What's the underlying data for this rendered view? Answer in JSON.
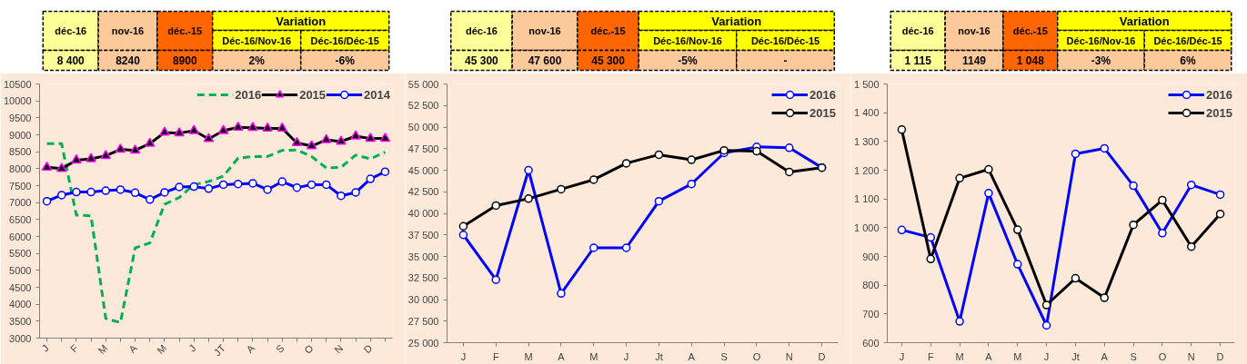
{
  "chart_data": [
    {
      "type": "other",
      "annotations": [
        "déc-16",
        "nov-16",
        "déc.-15",
        "Variation",
        "Déc-16/Nov-16",
        "Déc-16/Déc-15",
        "8 400",
        "8240",
        "8900",
        "2%",
        "-6%"
      ]
    },
    {
      "type": "line",
      "categories": [
        "J",
        null,
        "F",
        null,
        "M",
        null,
        "A",
        null,
        "M",
        null,
        "J",
        null,
        "JT",
        null,
        "A",
        null,
        "S",
        null,
        "O",
        null,
        "N",
        null,
        "D",
        null
      ],
      "ylim": [
        3000,
        10500
      ],
      "yticks": [
        3000,
        3500,
        4000,
        4500,
        5000,
        5500,
        6000,
        6500,
        7000,
        7500,
        8000,
        8500,
        9000,
        9500,
        10000,
        10500
      ],
      "grid": false,
      "legend": "top",
      "series": [
        {
          "name": "2016",
          "color": "#00b050",
          "line_style": "dashed",
          "marker": "none",
          "values": [
            8740,
            8740,
            6630,
            6610,
            3580,
            3460,
            5660,
            5810,
            6950,
            7150,
            7530,
            7620,
            7780,
            8310,
            8360,
            8360,
            8540,
            8550,
            8360,
            8020,
            8040,
            8400,
            8290,
            8490
          ]
        },
        {
          "name": "2015",
          "color": "#000000",
          "line_style": "solid",
          "marker": "triangle",
          "values": [
            8040,
            8000,
            8250,
            8290,
            8380,
            8570,
            8540,
            8740,
            9070,
            9050,
            9120,
            8880,
            9120,
            9220,
            9210,
            9190,
            9190,
            8760,
            8670,
            8850,
            8800,
            8960,
            8890,
            8890
          ]
        },
        {
          "name": "2014",
          "color": "#0000ff",
          "line_style": "solid",
          "marker": "circle",
          "values": [
            7040,
            7220,
            7310,
            7310,
            7350,
            7380,
            7290,
            7090,
            7300,
            7460,
            7470,
            7410,
            7530,
            7550,
            7570,
            7380,
            7620,
            7440,
            7530,
            7530,
            7200,
            7300,
            7700,
            7910
          ]
        }
      ]
    },
    {
      "type": "other",
      "annotations": [
        "déc-16",
        "nov-16",
        "déc.-15",
        "Variation",
        "Déc-16/Nov-16",
        "Déc-16/Déc-15",
        "45 300",
        "47 600",
        "45 300",
        "-5%",
        "-"
      ]
    },
    {
      "type": "line",
      "categories": [
        "J",
        "F",
        "M",
        "A",
        "M",
        "J",
        "Jt",
        "A",
        "S",
        "O",
        "N",
        "D"
      ],
      "ylim": [
        25000,
        55000
      ],
      "yticks": [
        {
          "value": 25000,
          "label": "25 000"
        },
        {
          "value": 27500,
          "label": "27 500"
        },
        {
          "value": 30000,
          "label": "30 000"
        },
        {
          "value": 32500,
          "label": "32 500"
        },
        {
          "value": 35000,
          "label": "35 000"
        },
        {
          "value": 37500,
          "label": "37 500"
        },
        {
          "value": 40000,
          "label": "40 000"
        },
        {
          "value": 42500,
          "label": "42 500"
        },
        {
          "value": 45000,
          "label": "45 000"
        },
        {
          "value": 47500,
          "label": "47 500"
        },
        {
          "value": 50000,
          "label": "50 000"
        },
        {
          "value": 52500,
          "label": "52 500"
        },
        {
          "value": 55000,
          "label": "55 000"
        }
      ],
      "grid": false,
      "legend": "top right",
      "series": [
        {
          "name": "2016",
          "color": "#0000ff",
          "line_style": "solid",
          "marker": "circle",
          "values": [
            37500,
            32300,
            45000,
            30700,
            36000,
            36000,
            41400,
            43400,
            47000,
            47700,
            47600,
            45300
          ]
        },
        {
          "name": "2015",
          "color": "#000000",
          "line_style": "solid",
          "marker": "circle",
          "values": [
            38500,
            40900,
            41700,
            42800,
            43900,
            45800,
            46800,
            46200,
            47300,
            47200,
            44800,
            45300
          ]
        }
      ]
    },
    {
      "type": "other",
      "annotations": [
        "déc-16",
        "nov-16",
        "déc.-15",
        "Variation",
        "Déc-16/Nov-16",
        "Déc-16/Déc-15",
        "1 115",
        "1149",
        "1 048",
        "-3%",
        "6%"
      ]
    },
    {
      "type": "line",
      "categories": [
        "J",
        "F",
        "M",
        "A",
        "M",
        "J",
        "Jt",
        "A",
        "S",
        "O",
        "N",
        "D"
      ],
      "ylim": [
        600,
        1500
      ],
      "yticks": [
        600,
        700,
        800,
        900,
        {
          "value": 1000,
          "label": "1 000"
        },
        {
          "value": 1100,
          "label": "1 100"
        },
        {
          "value": 1200,
          "label": "1 200"
        },
        {
          "value": 1300,
          "label": "1 300"
        },
        {
          "value": 1400,
          "label": "1 400"
        },
        {
          "value": 1500,
          "label": "1 500"
        }
      ],
      "grid": false,
      "legend": "top",
      "series": [
        {
          "name": "2016",
          "color": "#0000ff",
          "line_style": "solid",
          "marker": "circle",
          "values": [
            992,
            966,
            674,
            1120,
            873,
            660,
            1257,
            1276,
            1146,
            981,
            1149,
            1115
          ]
        },
        {
          "name": "2015",
          "color": "#000000",
          "line_style": "solid",
          "marker": "circle",
          "values": [
            1341,
            891,
            1172,
            1203,
            993,
            731,
            824,
            756,
            1010,
            1096,
            934,
            1048
          ]
        }
      ]
    }
  ]
}
